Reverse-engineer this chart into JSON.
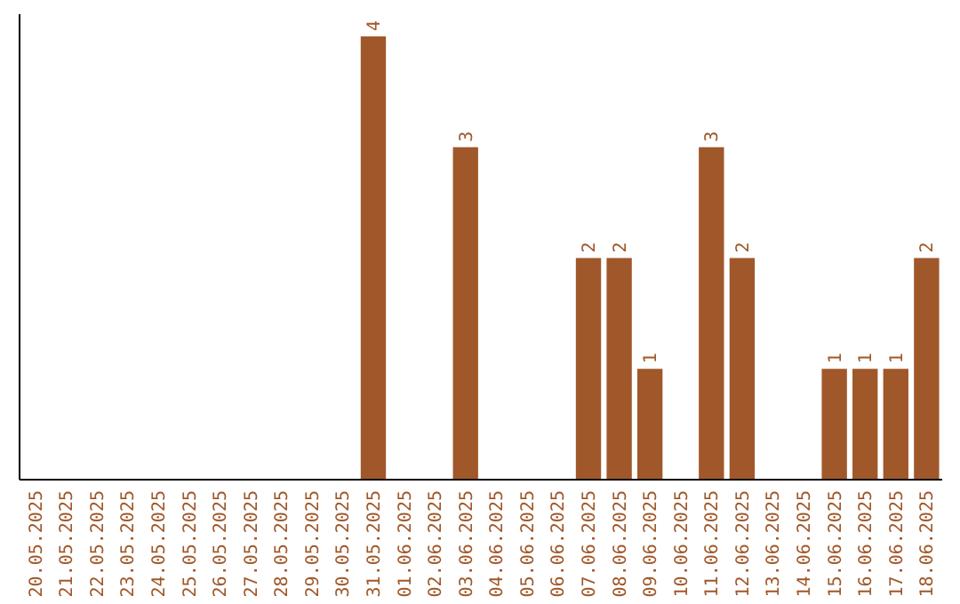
{
  "chart_data": {
    "type": "bar",
    "categories": [
      "20.05.2025",
      "21.05.2025",
      "22.05.2025",
      "23.05.2025",
      "24.05.2025",
      "25.05.2025",
      "26.05.2025",
      "27.05.2025",
      "28.05.2025",
      "29.05.2025",
      "30.05.2025",
      "31.05.2025",
      "01.06.2025",
      "02.06.2025",
      "03.06.2025",
      "04.06.2025",
      "05.06.2025",
      "06.06.2025",
      "07.06.2025",
      "08.06.2025",
      "09.06.2025",
      "10.06.2025",
      "11.06.2025",
      "12.06.2025",
      "13.06.2025",
      "14.06.2025",
      "15.06.2025",
      "16.06.2025",
      "17.06.2025",
      "18.06.2025"
    ],
    "values": [
      0,
      0,
      0,
      0,
      0,
      0,
      0,
      0,
      0,
      0,
      0,
      4,
      0,
      0,
      3,
      0,
      0,
      0,
      2,
      2,
      1,
      0,
      3,
      2,
      0,
      0,
      1,
      1,
      1,
      2
    ],
    "value_labels": [
      null,
      null,
      null,
      null,
      null,
      null,
      null,
      null,
      null,
      null,
      null,
      "4",
      null,
      null,
      "3",
      null,
      null,
      null,
      "2",
      "2",
      "1",
      null,
      "3",
      "2",
      null,
      null,
      "1",
      "1",
      "1",
      "2"
    ],
    "color": "#a0582a",
    "tick_labels": "x"
  }
}
